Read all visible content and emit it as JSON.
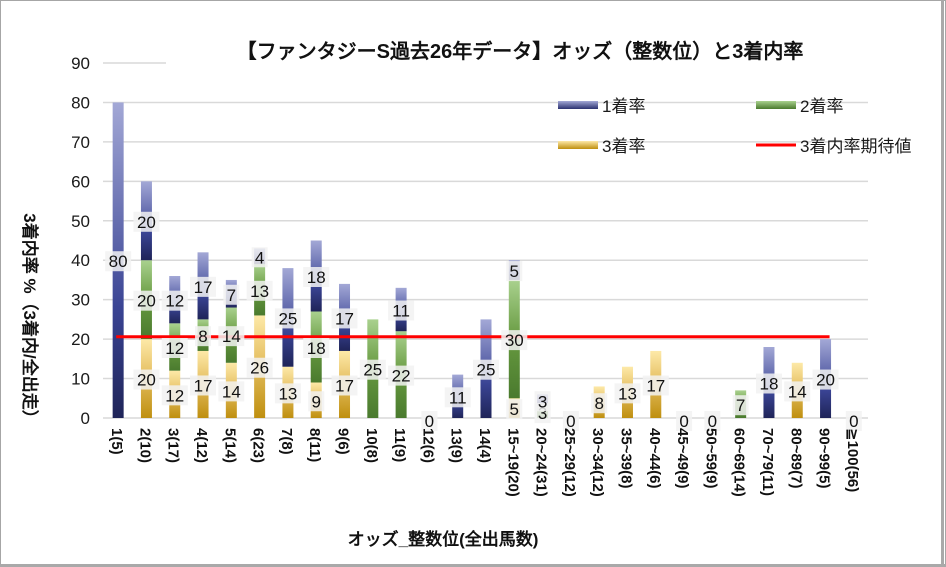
{
  "chart_data": {
    "type": "bar",
    "stacked": true,
    "title": "【ファンタジーS過去26年データ】オッズ（整数位）と3着内率",
    "xlabel": "オッズ_整数位(全出馬数)",
    "ylabel": "3着内率 %（3着内/全出走）",
    "ylim": [
      0,
      90
    ],
    "yticks": [
      0,
      10,
      20,
      30,
      40,
      50,
      60,
      70,
      80,
      90
    ],
    "grid": true,
    "legend_position": "top-right",
    "categories": [
      "1(5)",
      "2(10)",
      "3(17)",
      "4(12)",
      "5(14)",
      "6(23)",
      "7(8)",
      "8(11)",
      "9(6)",
      "10(8)",
      "11(9)",
      "12(6)",
      "13(9)",
      "14(4)",
      "15~19(20)",
      "20~24(31)",
      "25~29(12)",
      "30~34(12)",
      "35~39(8)",
      "40~44(6)",
      "45~49(9)",
      "50~59(9)",
      "60~69(14)",
      "70~79(11)",
      "80~89(7)",
      "90~99(5)",
      "≧100(56)"
    ],
    "series": [
      {
        "name": "1着率",
        "color": "#3a4494",
        "values": [
          80,
          20,
          12,
          17,
          7,
          4,
          25,
          18,
          17,
          0,
          11,
          0,
          11,
          25,
          5,
          3,
          0,
          0,
          0,
          0,
          0,
          0,
          0,
          18,
          0,
          20,
          0
        ]
      },
      {
        "name": "2着率",
        "color": "#5a8f3c",
        "values": [
          0,
          20,
          12,
          8,
          14,
          13,
          0,
          18,
          0,
          25,
          22,
          0,
          0,
          0,
          30,
          3,
          0,
          0,
          0,
          0,
          0,
          0,
          7,
          0,
          0,
          0,
          0
        ]
      },
      {
        "name": "3着率",
        "color": "#c8961e",
        "values": [
          0,
          20,
          12,
          17,
          14,
          26,
          13,
          9,
          17,
          0,
          0,
          0,
          0,
          0,
          5,
          0,
          0,
          8,
          13,
          17,
          0,
          0,
          0,
          0,
          14,
          0,
          0
        ]
      }
    ],
    "reference_line": {
      "name": "3着内率期待値",
      "value": 20.6,
      "color": "#ff0000"
    },
    "legend": [
      {
        "label": "1着率",
        "kind": "bar",
        "color": "#3a4494"
      },
      {
        "label": "2着率",
        "kind": "bar",
        "color": "#5a8f3c"
      },
      {
        "label": "3着率",
        "kind": "bar",
        "color": "#c8961e"
      },
      {
        "label": "3着内率期待値",
        "kind": "line",
        "color": "#ff0000"
      }
    ]
  }
}
